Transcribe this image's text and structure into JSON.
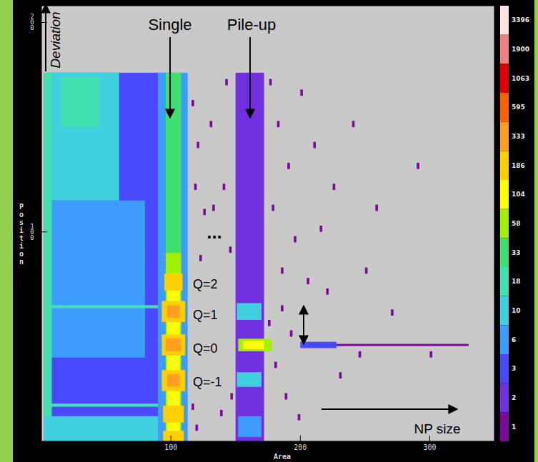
{
  "chart_data": {
    "type": "heatmap",
    "x_label": "Area",
    "y_label": "Position",
    "xlim": [
      0,
      350
    ],
    "ylim": [
      0,
      208
    ],
    "xticks": [
      100,
      200,
      300
    ],
    "yticks": [
      100,
      200
    ],
    "annotations": [
      "Single",
      "Pile-up",
      "Deviation",
      "NP size",
      "Q=2",
      "Q=1",
      "Q=0",
      "Q=-1",
      "..."
    ],
    "colorbar": {
      "range": [
        1,
        3396
      ],
      "ticks": [
        1,
        2,
        3,
        6,
        10,
        18,
        33,
        58,
        104,
        186,
        333,
        595,
        1063,
        1900,
        3396
      ],
      "colors": [
        "#7a0a9a",
        "#7030e0",
        "#4848ff",
        "#3c9cff",
        "#40d0e0",
        "#40e0b0",
        "#40e070",
        "#a0f000",
        "#ffff00",
        "#ffd000",
        "#ffa020",
        "#ff6000",
        "#e00000",
        "#f08080",
        "#ffe4e4"
      ]
    },
    "cells": [
      {
        "x": [
          2,
          95
        ],
        "y": [
          0,
          176
        ],
        "value": 3
      },
      {
        "x": [
          5,
          80
        ],
        "y": [
          40,
          115
        ],
        "value": 6
      },
      {
        "x": [
          5,
          60
        ],
        "y": [
          115,
          176
        ],
        "value": 10
      },
      {
        "x": [
          15,
          45
        ],
        "y": [
          150,
          174
        ],
        "value": 18
      },
      {
        "x": [
          2,
          8
        ],
        "y": [
          0,
          176
        ],
        "value": 18
      },
      {
        "x": [
          2,
          95
        ],
        "y": [
          0,
          12
        ],
        "value": 10
      },
      {
        "x": [
          2,
          95
        ],
        "y": [
          63.5,
          65
        ],
        "value": 18
      },
      {
        "x": [
          2,
          95
        ],
        "y": [
          16.5,
          18
        ],
        "value": 18
      },
      {
        "x": [
          90,
          113
        ],
        "y": [
          0,
          176
        ],
        "value": 6
      },
      {
        "x": [
          96,
          108
        ],
        "y": [
          90,
          176
        ],
        "value": 33
      },
      {
        "x": [
          96,
          108
        ],
        "y": [
          0,
          90
        ],
        "value": 58
      },
      {
        "x": [
          97,
          107
        ],
        "y": [
          0,
          80
        ],
        "value": 104
      },
      {
        "x": [
          95,
          109
        ],
        "y": [
          72,
          80
        ],
        "value": 186
      },
      {
        "x": [
          93,
          111
        ],
        "y": [
          57,
          67
        ],
        "value": 186
      },
      {
        "x": [
          97,
          107
        ],
        "y": [
          59,
          65
        ],
        "value": 333
      },
      {
        "x": [
          93,
          111
        ],
        "y": [
          41,
          51
        ],
        "value": 186
      },
      {
        "x": [
          96,
          108
        ],
        "y": [
          43,
          49
        ],
        "value": 333
      },
      {
        "x": [
          93,
          111
        ],
        "y": [
          24,
          34
        ],
        "value": 186
      },
      {
        "x": [
          97,
          107
        ],
        "y": [
          26,
          32
        ],
        "value": 333
      },
      {
        "x": [
          94,
          110
        ],
        "y": [
          9,
          17
        ],
        "value": 186
      },
      {
        "x": [
          94,
          110
        ],
        "y": [
          0,
          5
        ],
        "value": 186
      },
      {
        "x": [
          150,
          172
        ],
        "y": [
          0,
          176
        ],
        "value": 2
      },
      {
        "x": [
          151,
          170
        ],
        "y": [
          58,
          66
        ],
        "value": 10
      },
      {
        "x": [
          151,
          170
        ],
        "y": [
          26,
          33
        ],
        "value": 10
      },
      {
        "x": [
          152,
          178
        ],
        "y": [
          43,
          49
        ],
        "value": 58
      },
      {
        "x": [
          156,
          172
        ],
        "y": [
          44,
          48
        ],
        "value": 104
      },
      {
        "x": [
          152,
          170
        ],
        "y": [
          2,
          12
        ],
        "value": 6
      },
      {
        "x": [
          200,
          228
        ],
        "y": [
          44.5,
          47.5
        ],
        "value": 3
      },
      {
        "x": [
          228,
          330
        ],
        "y": [
          45.5,
          46.5
        ],
        "value": 1
      },
      {
        "x": [
          116,
          118
        ],
        "y": [
          160,
          163
        ],
        "value": 1
      },
      {
        "x": [
          120,
          122
        ],
        "y": [
          140,
          143
        ],
        "value": 1
      },
      {
        "x": [
          118,
          120
        ],
        "y": [
          120,
          123
        ],
        "value": 1
      },
      {
        "x": [
          125,
          127
        ],
        "y": [
          108,
          111
        ],
        "value": 1
      },
      {
        "x": [
          122,
          124
        ],
        "y": [
          86,
          89
        ],
        "value": 1
      },
      {
        "x": [
          130,
          132
        ],
        "y": [
          150,
          153
        ],
        "value": 1
      },
      {
        "x": [
          138,
          140
        ],
        "y": [
          12,
          15
        ],
        "value": 1
      },
      {
        "x": [
          140,
          142
        ],
        "y": [
          120,
          123
        ],
        "value": 1
      },
      {
        "x": [
          145,
          147
        ],
        "y": [
          90,
          93
        ],
        "value": 1
      },
      {
        "x": [
          142,
          144
        ],
        "y": [
          170,
          173
        ],
        "value": 1
      },
      {
        "x": [
          119,
          121
        ],
        "y": [
          5,
          8
        ],
        "value": 1
      },
      {
        "x": [
          132,
          134
        ],
        "y": [
          110,
          113
        ],
        "value": 1
      },
      {
        "x": [
          116,
          118
        ],
        "y": [
          15,
          18
        ],
        "value": 1
      },
      {
        "x": [
          146,
          148
        ],
        "y": [
          20,
          23
        ],
        "value": 1
      },
      {
        "x": [
          176,
          178
        ],
        "y": [
          170,
          173
        ],
        "value": 1
      },
      {
        "x": [
          182,
          184
        ],
        "y": [
          150,
          153
        ],
        "value": 1
      },
      {
        "x": [
          190,
          192
        ],
        "y": [
          130,
          133
        ],
        "value": 1
      },
      {
        "x": [
          178,
          180
        ],
        "y": [
          110,
          113
        ],
        "value": 1
      },
      {
        "x": [
          195,
          197
        ],
        "y": [
          95,
          98
        ],
        "value": 1
      },
      {
        "x": [
          185,
          187
        ],
        "y": [
          80,
          83
        ],
        "value": 1
      },
      {
        "x": [
          200,
          202
        ],
        "y": [
          165,
          168
        ],
        "value": 1
      },
      {
        "x": [
          210,
          212
        ],
        "y": [
          140,
          143
        ],
        "value": 1
      },
      {
        "x": [
          205,
          207
        ],
        "y": [
          75,
          78
        ],
        "value": 1
      },
      {
        "x": [
          215,
          217
        ],
        "y": [
          100,
          103
        ],
        "value": 1
      },
      {
        "x": [
          225,
          227
        ],
        "y": [
          120,
          123
        ],
        "value": 1
      },
      {
        "x": [
          230,
          232
        ],
        "y": [
          30,
          33
        ],
        "value": 1
      },
      {
        "x": [
          240,
          242
        ],
        "y": [
          150,
          153
        ],
        "value": 1
      },
      {
        "x": [
          250,
          252
        ],
        "y": [
          80,
          83
        ],
        "value": 1
      },
      {
        "x": [
          188,
          190
        ],
        "y": [
          20,
          23
        ],
        "value": 1
      },
      {
        "x": [
          198,
          200
        ],
        "y": [
          10,
          13
        ],
        "value": 1
      },
      {
        "x": [
          220,
          222
        ],
        "y": [
          70,
          73
        ],
        "value": 1
      },
      {
        "x": [
          245,
          247
        ],
        "y": [
          40,
          43
        ],
        "value": 1
      },
      {
        "x": [
          258,
          260
        ],
        "y": [
          110,
          113
        ],
        "value": 1
      },
      {
        "x": [
          175,
          177
        ],
        "y": [
          55,
          58
        ],
        "value": 1
      },
      {
        "x": [
          180,
          182
        ],
        "y": [
          35,
          38
        ],
        "value": 1
      },
      {
        "x": [
          270,
          272
        ],
        "y": [
          60,
          63
        ],
        "value": 1
      },
      {
        "x": [
          290,
          292
        ],
        "y": [
          130,
          133
        ],
        "value": 1
      },
      {
        "x": [
          300,
          302
        ],
        "y": [
          40,
          43
        ],
        "value": 1
      },
      {
        "x": [
          185,
          187
        ],
        "y": [
          62,
          65
        ],
        "value": 1
      },
      {
        "x": [
          192,
          194
        ],
        "y": [
          50,
          53
        ],
        "value": 1
      }
    ]
  }
}
